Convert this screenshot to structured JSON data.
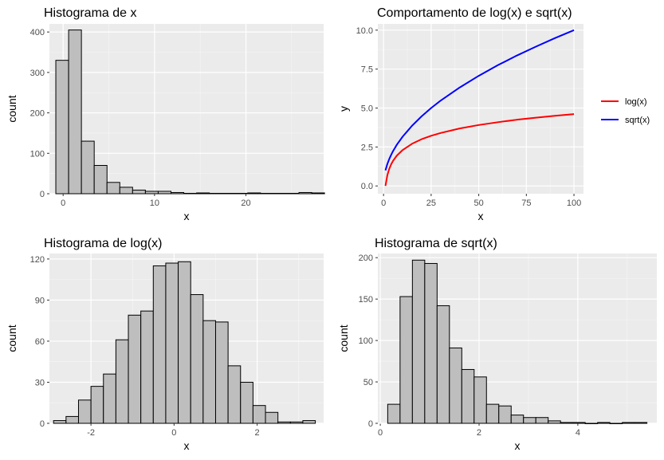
{
  "chart_data": [
    {
      "type": "bar",
      "subtype": "histogram",
      "title": "Histograma de x",
      "xlabel": "x",
      "ylabel": "count",
      "xlim": [
        -1.5,
        28.5
      ],
      "ylim": [
        0,
        420
      ],
      "xticks": [
        0,
        10,
        20
      ],
      "yticks": [
        0,
        100,
        200,
        300,
        400
      ],
      "grid": true,
      "bins": [
        {
          "x0": -0.8,
          "x1": 0.6,
          "count": 330
        },
        {
          "x0": 0.6,
          "x1": 2.0,
          "count": 405
        },
        {
          "x0": 2.0,
          "x1": 3.4,
          "count": 130
        },
        {
          "x0": 3.4,
          "x1": 4.8,
          "count": 70
        },
        {
          "x0": 4.8,
          "x1": 6.2,
          "count": 28
        },
        {
          "x0": 6.2,
          "x1": 7.6,
          "count": 16
        },
        {
          "x0": 7.6,
          "x1": 9.0,
          "count": 9
        },
        {
          "x0": 9.0,
          "x1": 10.4,
          "count": 6
        },
        {
          "x0": 10.4,
          "x1": 11.8,
          "count": 6
        },
        {
          "x0": 11.8,
          "x1": 13.2,
          "count": 3
        },
        {
          "x0": 13.2,
          "x1": 14.6,
          "count": 1
        },
        {
          "x0": 14.6,
          "x1": 16.0,
          "count": 2
        },
        {
          "x0": 16.0,
          "x1": 17.4,
          "count": 1
        },
        {
          "x0": 17.4,
          "x1": 18.8,
          "count": 1
        },
        {
          "x0": 18.8,
          "x1": 20.2,
          "count": 1
        },
        {
          "x0": 20.2,
          "x1": 21.6,
          "count": 2
        },
        {
          "x0": 21.6,
          "x1": 23.0,
          "count": 1
        },
        {
          "x0": 23.0,
          "x1": 24.4,
          "count": 1
        },
        {
          "x0": 24.4,
          "x1": 25.8,
          "count": 1
        },
        {
          "x0": 25.8,
          "x1": 27.2,
          "count": 3
        },
        {
          "x0": 27.2,
          "x1": 28.6,
          "count": 2
        }
      ]
    },
    {
      "type": "line",
      "title": "Comportamento de log(x) e sqrt(x)",
      "xlabel": "x",
      "ylabel": "y",
      "xlim": [
        -3,
        105
      ],
      "ylim": [
        -0.5,
        10.4
      ],
      "xticks": [
        0,
        25,
        50,
        75,
        100
      ],
      "yticks": [
        0.0,
        2.5,
        5.0,
        7.5,
        10.0
      ],
      "ytick_labels": [
        "0.0",
        "2.5",
        "5.0",
        "7.5",
        "10.0"
      ],
      "grid": true,
      "legend_position": "right",
      "x": [
        1,
        2,
        3,
        4,
        5,
        7,
        10,
        15,
        20,
        25,
        30,
        40,
        50,
        60,
        70,
        80,
        90,
        100
      ],
      "series": [
        {
          "name": "log(x)",
          "color": "#ff0000",
          "values": [
            0.0,
            0.69,
            1.1,
            1.39,
            1.61,
            1.95,
            2.3,
            2.71,
            3.0,
            3.22,
            3.4,
            3.69,
            3.91,
            4.09,
            4.25,
            4.38,
            4.5,
            4.61
          ]
        },
        {
          "name": "sqrt(x)",
          "color": "#0000ff",
          "values": [
            1.0,
            1.41,
            1.73,
            2.0,
            2.24,
            2.65,
            3.16,
            3.87,
            4.47,
            5.0,
            5.48,
            6.32,
            7.07,
            7.75,
            8.37,
            8.94,
            9.49,
            10.0
          ]
        }
      ]
    },
    {
      "type": "bar",
      "subtype": "histogram",
      "title": "Histograma de log(x)",
      "xlabel": "x",
      "ylabel": "count",
      "xlim": [
        -3.0,
        3.6
      ],
      "ylim": [
        0,
        124
      ],
      "xticks": [
        -2,
        0,
        2
      ],
      "yticks": [
        0,
        30,
        60,
        90,
        120
      ],
      "grid": true,
      "bins": [
        {
          "x0": -2.9,
          "x1": -2.6,
          "count": 2
        },
        {
          "x0": -2.6,
          "x1": -2.3,
          "count": 5
        },
        {
          "x0": -2.3,
          "x1": -2.0,
          "count": 17
        },
        {
          "x0": -2.0,
          "x1": -1.7,
          "count": 27
        },
        {
          "x0": -1.7,
          "x1": -1.4,
          "count": 36
        },
        {
          "x0": -1.4,
          "x1": -1.1,
          "count": 61
        },
        {
          "x0": -1.1,
          "x1": -0.8,
          "count": 79
        },
        {
          "x0": -0.8,
          "x1": -0.5,
          "count": 82
        },
        {
          "x0": -0.5,
          "x1": -0.2,
          "count": 115
        },
        {
          "x0": -0.2,
          "x1": 0.1,
          "count": 117
        },
        {
          "x0": 0.1,
          "x1": 0.4,
          "count": 118
        },
        {
          "x0": 0.4,
          "x1": 0.7,
          "count": 94
        },
        {
          "x0": 0.7,
          "x1": 1.0,
          "count": 75
        },
        {
          "x0": 1.0,
          "x1": 1.3,
          "count": 74
        },
        {
          "x0": 1.3,
          "x1": 1.6,
          "count": 42
        },
        {
          "x0": 1.6,
          "x1": 1.9,
          "count": 30
        },
        {
          "x0": 1.9,
          "x1": 2.2,
          "count": 13
        },
        {
          "x0": 2.2,
          "x1": 2.5,
          "count": 8
        },
        {
          "x0": 2.5,
          "x1": 2.8,
          "count": 1
        },
        {
          "x0": 2.8,
          "x1": 3.1,
          "count": 1
        },
        {
          "x0": 3.1,
          "x1": 3.4,
          "count": 2
        }
      ]
    },
    {
      "type": "bar",
      "subtype": "histogram",
      "title": "Histograma de sqrt(x)",
      "xlabel": "x",
      "ylabel": "count",
      "xlim": [
        -0.05,
        5.6
      ],
      "ylim": [
        0,
        205
      ],
      "xticks": [
        0,
        2,
        4
      ],
      "yticks": [
        0,
        50,
        100,
        150,
        200
      ],
      "grid": true,
      "bins": [
        {
          "x0": 0.15,
          "x1": 0.4,
          "count": 23
        },
        {
          "x0": 0.4,
          "x1": 0.65,
          "count": 153
        },
        {
          "x0": 0.65,
          "x1": 0.9,
          "count": 197
        },
        {
          "x0": 0.9,
          "x1": 1.15,
          "count": 193
        },
        {
          "x0": 1.15,
          "x1": 1.4,
          "count": 142
        },
        {
          "x0": 1.4,
          "x1": 1.65,
          "count": 91
        },
        {
          "x0": 1.65,
          "x1": 1.9,
          "count": 65
        },
        {
          "x0": 1.9,
          "x1": 2.15,
          "count": 56
        },
        {
          "x0": 2.15,
          "x1": 2.4,
          "count": 23
        },
        {
          "x0": 2.4,
          "x1": 2.65,
          "count": 21
        },
        {
          "x0": 2.65,
          "x1": 2.9,
          "count": 10
        },
        {
          "x0": 2.9,
          "x1": 3.15,
          "count": 7
        },
        {
          "x0": 3.15,
          "x1": 3.4,
          "count": 7
        },
        {
          "x0": 3.4,
          "x1": 3.65,
          "count": 3
        },
        {
          "x0": 3.65,
          "x1": 3.9,
          "count": 1
        },
        {
          "x0": 3.9,
          "x1": 4.15,
          "count": 1
        },
        {
          "x0": 4.15,
          "x1": 4.4,
          "count": 0
        },
        {
          "x0": 4.4,
          "x1": 4.65,
          "count": 1
        },
        {
          "x0": 4.65,
          "x1": 4.9,
          "count": 0
        },
        {
          "x0": 4.9,
          "x1": 5.15,
          "count": 1
        },
        {
          "x0": 5.15,
          "x1": 5.4,
          "count": 1
        }
      ]
    }
  ]
}
